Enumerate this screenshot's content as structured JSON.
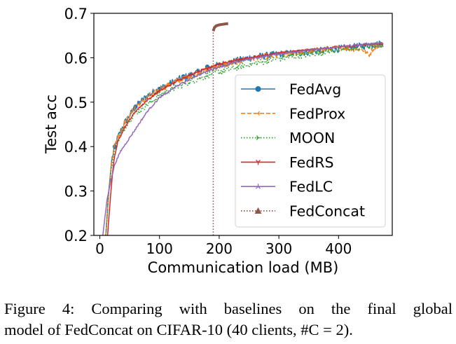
{
  "chart_data": {
    "type": "line",
    "title": "",
    "xlabel": "Communication load (MB)",
    "ylabel": "Test acc",
    "xlim": [
      -10,
      490
    ],
    "ylim": [
      0.2,
      0.7
    ],
    "xticks": [
      0,
      100,
      200,
      300,
      400
    ],
    "yticks": [
      0.2,
      0.3,
      0.4,
      0.5,
      0.6,
      0.7
    ],
    "xtick_labels": [
      "0",
      "100",
      "200",
      "300",
      "400"
    ],
    "ytick_labels": [
      "0.2",
      "0.3",
      "0.4",
      "0.5",
      "0.6",
      "0.7"
    ],
    "grid": false,
    "legend_position": "lower-right",
    "series": [
      {
        "name": "FedAvg",
        "color": "#1f77b4",
        "style": "solid",
        "marker": "circle",
        "x": [
          10,
          15,
          20,
          25,
          30,
          40,
          50,
          60,
          80,
          100,
          130,
          160,
          190,
          220,
          250,
          300,
          350,
          400,
          450,
          475
        ],
        "y": [
          0.2,
          0.3,
          0.37,
          0.4,
          0.42,
          0.45,
          0.47,
          0.49,
          0.515,
          0.53,
          0.55,
          0.565,
          0.58,
          0.59,
          0.6,
          0.608,
          0.613,
          0.62,
          0.628,
          0.632
        ],
        "noise": 0.008
      },
      {
        "name": "FedProx",
        "color": "#ff7f0e",
        "style": "dashed",
        "marker": "tri-left",
        "x": [
          10,
          15,
          20,
          25,
          30,
          40,
          50,
          60,
          80,
          100,
          130,
          160,
          190,
          220,
          250,
          300,
          350,
          400,
          440,
          450,
          460,
          475
        ],
        "y": [
          0.2,
          0.3,
          0.37,
          0.405,
          0.42,
          0.45,
          0.47,
          0.49,
          0.51,
          0.528,
          0.548,
          0.563,
          0.578,
          0.588,
          0.598,
          0.606,
          0.614,
          0.622,
          0.62,
          0.605,
          0.625,
          0.632
        ],
        "noise": 0.007
      },
      {
        "name": "MOON",
        "color": "#2ca02c",
        "style": "dotted",
        "marker": "tri-right",
        "x": [
          10,
          15,
          20,
          25,
          30,
          40,
          50,
          60,
          80,
          100,
          130,
          160,
          190,
          220,
          250,
          300,
          350,
          400,
          450,
          475
        ],
        "y": [
          0.2,
          0.3,
          0.36,
          0.39,
          0.41,
          0.44,
          0.46,
          0.475,
          0.495,
          0.515,
          0.535,
          0.55,
          0.565,
          0.575,
          0.585,
          0.598,
          0.608,
          0.618,
          0.626,
          0.63
        ],
        "noise": 0.007
      },
      {
        "name": "FedRS",
        "color": "#d62728",
        "style": "solid",
        "marker": "tri-down",
        "x": [
          13,
          18,
          22,
          25,
          30,
          40,
          50,
          60,
          80,
          100,
          130,
          160,
          190,
          220,
          250,
          300,
          350,
          400,
          450,
          475
        ],
        "y": [
          0.2,
          0.29,
          0.35,
          0.38,
          0.41,
          0.44,
          0.46,
          0.48,
          0.505,
          0.525,
          0.548,
          0.567,
          0.582,
          0.592,
          0.6,
          0.611,
          0.618,
          0.624,
          0.63,
          0.632
        ],
        "noise": 0.002
      },
      {
        "name": "FedLC",
        "color": "#9467bd",
        "style": "solid",
        "marker": "tri-up",
        "x": [
          5,
          12,
          18,
          25,
          35,
          50,
          65,
          80,
          100,
          130,
          160,
          190,
          220,
          250,
          300,
          350,
          400,
          450,
          475
        ],
        "y": [
          0.2,
          0.28,
          0.32,
          0.36,
          0.39,
          0.42,
          0.45,
          0.48,
          0.51,
          0.537,
          0.558,
          0.575,
          0.587,
          0.597,
          0.609,
          0.617,
          0.624,
          0.631,
          0.634
        ],
        "noise": 0.002
      },
      {
        "name": "FedConcat",
        "color": "#8c564b",
        "style": "dotted",
        "marker": "triangle",
        "x": [
          190,
          190,
          192,
          195,
          200,
          205,
          210,
          215
        ],
        "y": [
          0.2,
          0.66,
          0.668,
          0.672,
          0.674,
          0.675,
          0.676,
          0.677
        ],
        "noise": 0.0
      }
    ]
  },
  "caption": {
    "line1": "Figure 4: Comparing with baselines on the final global",
    "line2": "model of FedConcat on CIFAR-10 (40 clients, #C = 2)."
  }
}
